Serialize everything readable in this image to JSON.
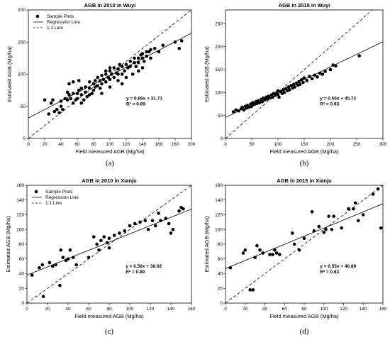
{
  "colors": {
    "points": "#000000",
    "regression": "#000000",
    "identity": "#000000",
    "background": "#ffffff"
  },
  "chart_data": [
    {
      "type": "scatter",
      "caption": "(a)",
      "title": "AGB in 2010 in Wuyi",
      "xlabel": "Field measured AGB (Mg/ha)",
      "ylabel": "Estimated AGB (Mg/ha)",
      "xlim": [
        0,
        200
      ],
      "ylim": [
        0,
        200
      ],
      "xticks": [
        0,
        20,
        40,
        60,
        80,
        100,
        120,
        140,
        160,
        180,
        200
      ],
      "yticks": [
        0,
        50,
        100,
        150,
        200
      ],
      "equation": "y = 0.66x + 31.71",
      "r2": "R² = 0.89",
      "regression": {
        "slope": 0.66,
        "intercept": 31.71
      },
      "legend": {
        "position": "top-left",
        "entries": [
          "Sample Plots",
          "Regression Line",
          "1:1 Line"
        ]
      },
      "points": [
        [
          20,
          60
        ],
        [
          25,
          38
        ],
        [
          28,
          55
        ],
        [
          30,
          60
        ],
        [
          32,
          42
        ],
        [
          35,
          45
        ],
        [
          38,
          40
        ],
        [
          40,
          50
        ],
        [
          40,
          58
        ],
        [
          42,
          45
        ],
        [
          45,
          62
        ],
        [
          48,
          60
        ],
        [
          48,
          72
        ],
        [
          50,
          68
        ],
        [
          50,
          85
        ],
        [
          52,
          62
        ],
        [
          55,
          55
        ],
        [
          55,
          70
        ],
        [
          55,
          88
        ],
        [
          58,
          60
        ],
        [
          60,
          62
        ],
        [
          60,
          70
        ],
        [
          62,
          75
        ],
        [
          62,
          90
        ],
        [
          65,
          55
        ],
        [
          65,
          68
        ],
        [
          65,
          78
        ],
        [
          68,
          60
        ],
        [
          70,
          72
        ],
        [
          70,
          80
        ],
        [
          72,
          65
        ],
        [
          75,
          68
        ],
        [
          75,
          78
        ],
        [
          75,
          88
        ],
        [
          78,
          70
        ],
        [
          80,
          75
        ],
        [
          80,
          85
        ],
        [
          82,
          80
        ],
        [
          82,
          90
        ],
        [
          85,
          82
        ],
        [
          85,
          95
        ],
        [
          88,
          78
        ],
        [
          88,
          90
        ],
        [
          90,
          70
        ],
        [
          90,
          85
        ],
        [
          90,
          98
        ],
        [
          92,
          92
        ],
        [
          95,
          88
        ],
        [
          95,
          100
        ],
        [
          95,
          105
        ],
        [
          98,
          95
        ],
        [
          100,
          80
        ],
        [
          100,
          92
        ],
        [
          100,
          105
        ],
        [
          100,
          110
        ],
        [
          102,
          100
        ],
        [
          105,
          95
        ],
        [
          105,
          110
        ],
        [
          108,
          102
        ],
        [
          110,
          90
        ],
        [
          110,
          100
        ],
        [
          110,
          108
        ],
        [
          112,
          115
        ],
        [
          115,
          85
        ],
        [
          115,
          100
        ],
        [
          115,
          112
        ],
        [
          118,
          105
        ],
        [
          120,
          95
        ],
        [
          120,
          115
        ],
        [
          122,
          110
        ],
        [
          125,
          112
        ],
        [
          125,
          120
        ],
        [
          128,
          100
        ],
        [
          130,
          118
        ],
        [
          130,
          125
        ],
        [
          132,
          112
        ],
        [
          135,
          105
        ],
        [
          135,
          118
        ],
        [
          135,
          125
        ],
        [
          138,
          130
        ],
        [
          140,
          110
        ],
        [
          140,
          125
        ],
        [
          140,
          132
        ],
        [
          142,
          120
        ],
        [
          145,
          128
        ],
        [
          145,
          135
        ],
        [
          148,
          135
        ],
        [
          150,
          125
        ],
        [
          150,
          138
        ],
        [
          155,
          140
        ],
        [
          160,
          135
        ],
        [
          165,
          145
        ],
        [
          180,
          150
        ],
        [
          185,
          140
        ],
        [
          188,
          152
        ]
      ]
    },
    {
      "type": "scatter",
      "caption": "(b)",
      "title": "AGB in 2015 in Wuyi",
      "xlabel": "Field measured AGB (Mg/ha)",
      "ylabel": "Estimated AGB (Mg/ha)",
      "xlim": [
        0,
        300
      ],
      "ylim": [
        0,
        280
      ],
      "xticks": [
        0,
        50,
        100,
        150,
        200,
        250,
        300
      ],
      "yticks": [
        0,
        50,
        100,
        150,
        200,
        250
      ],
      "equation": "y = 0.55x + 45.72",
      "r2": "R² = 0.93",
      "regression": {
        "slope": 0.55,
        "intercept": 45.72
      },
      "points": [
        [
          15,
          58
        ],
        [
          20,
          62
        ],
        [
          25,
          60
        ],
        [
          30,
          65
        ],
        [
          32,
          68
        ],
        [
          35,
          62
        ],
        [
          38,
          70
        ],
        [
          40,
          66
        ],
        [
          42,
          72
        ],
        [
          45,
          68
        ],
        [
          48,
          75
        ],
        [
          50,
          70
        ],
        [
          52,
          78
        ],
        [
          55,
          74
        ],
        [
          58,
          80
        ],
        [
          60,
          76
        ],
        [
          62,
          82
        ],
        [
          65,
          78
        ],
        [
          68,
          85
        ],
        [
          70,
          80
        ],
        [
          72,
          88
        ],
        [
          75,
          84
        ],
        [
          78,
          90
        ],
        [
          80,
          86
        ],
        [
          82,
          92
        ],
        [
          85,
          88
        ],
        [
          88,
          95
        ],
        [
          90,
          90
        ],
        [
          92,
          98
        ],
        [
          95,
          94
        ],
        [
          98,
          100
        ],
        [
          100,
          96
        ],
        [
          100,
          104
        ],
        [
          102,
          90
        ],
        [
          105,
          102
        ],
        [
          108,
          98
        ],
        [
          110,
          106
        ],
        [
          112,
          100
        ],
        [
          115,
          108
        ],
        [
          118,
          104
        ],
        [
          120,
          112
        ],
        [
          122,
          106
        ],
        [
          125,
          115
        ],
        [
          128,
          110
        ],
        [
          130,
          118
        ],
        [
          132,
          112
        ],
        [
          135,
          120
        ],
        [
          138,
          116
        ],
        [
          140,
          124
        ],
        [
          142,
          118
        ],
        [
          145,
          128
        ],
        [
          148,
          122
        ],
        [
          150,
          132
        ],
        [
          155,
          126
        ],
        [
          160,
          135
        ],
        [
          165,
          130
        ],
        [
          170,
          138
        ],
        [
          175,
          134
        ],
        [
          180,
          142
        ],
        [
          185,
          140
        ],
        [
          190,
          146
        ],
        [
          200,
          150
        ],
        [
          205,
          160
        ],
        [
          210,
          158
        ],
        [
          255,
          180
        ]
      ]
    },
    {
      "type": "scatter",
      "caption": "(c)",
      "title": "AGB in 2010 in Xianju",
      "xlabel": "Field measured AGB (Mg/ha)",
      "ylabel": "Estimated AGB (Mg/ha)",
      "xlim": [
        0,
        160
      ],
      "ylim": [
        0,
        160
      ],
      "xticks": [
        0,
        20,
        40,
        60,
        80,
        100,
        120,
        140,
        160
      ],
      "yticks": [
        0,
        20,
        40,
        60,
        80,
        100,
        120,
        140,
        160
      ],
      "equation": "y = 0.56x + 38.02",
      "r2": "R² = 0.89",
      "regression": {
        "slope": 0.56,
        "intercept": 38.02
      },
      "legend": {
        "position": "top-left",
        "entries": [
          "Sample Plots",
          "Regression Line",
          "1:1 Line"
        ]
      },
      "points": [
        [
          5,
          38
        ],
        [
          12,
          48
        ],
        [
          15,
          52
        ],
        [
          16,
          9
        ],
        [
          22,
          55
        ],
        [
          25,
          50
        ],
        [
          28,
          52
        ],
        [
          32,
          24
        ],
        [
          33,
          72
        ],
        [
          35,
          62
        ],
        [
          38,
          58
        ],
        [
          40,
          60
        ],
        [
          42,
          72
        ],
        [
          45,
          62
        ],
        [
          48,
          52
        ],
        [
          60,
          62
        ],
        [
          65,
          90
        ],
        [
          68,
          80
        ],
        [
          70,
          72
        ],
        [
          72,
          85
        ],
        [
          75,
          90
        ],
        [
          78,
          82
        ],
        [
          80,
          75
        ],
        [
          80,
          88
        ],
        [
          85,
          92
        ],
        [
          90,
          95
        ],
        [
          95,
          98
        ],
        [
          100,
          105
        ],
        [
          105,
          108
        ],
        [
          110,
          110
        ],
        [
          115,
          112
        ],
        [
          118,
          100
        ],
        [
          122,
          112
        ],
        [
          125,
          105
        ],
        [
          128,
          122
        ],
        [
          130,
          112
        ],
        [
          135,
          115
        ],
        [
          138,
          108
        ],
        [
          140,
          95
        ],
        [
          142,
          100
        ],
        [
          148,
          125
        ],
        [
          150,
          130
        ],
        [
          152,
          128
        ]
      ]
    },
    {
      "type": "scatter",
      "caption": "(d)",
      "title": "AGB in 2015 in Xianju",
      "xlabel": "Field measured AGB (Mg/ha)",
      "ylabel": "Estimated AGB (Mg/ha)",
      "xlim": [
        0,
        160
      ],
      "ylim": [
        0,
        160
      ],
      "xticks": [
        0,
        20,
        40,
        60,
        80,
        100,
        120,
        140,
        160
      ],
      "yticks": [
        0,
        20,
        40,
        60,
        80,
        100,
        120,
        140,
        160
      ],
      "equation": "y = 0.55x + 46.89",
      "r2": "R² = 0.83",
      "regression": {
        "slope": 0.55,
        "intercept": 46.89
      },
      "points": [
        [
          5,
          48
        ],
        [
          18,
          68
        ],
        [
          20,
          72
        ],
        [
          25,
          18
        ],
        [
          28,
          18
        ],
        [
          30,
          62
        ],
        [
          32,
          78
        ],
        [
          35,
          72
        ],
        [
          38,
          68
        ],
        [
          45,
          66
        ],
        [
          48,
          66
        ],
        [
          50,
          72
        ],
        [
          52,
          68
        ],
        [
          55,
          66
        ],
        [
          68,
          95
        ],
        [
          70,
          80
        ],
        [
          75,
          72
        ],
        [
          80,
          88
        ],
        [
          88,
          124
        ],
        [
          90,
          98
        ],
        [
          95,
          104
        ],
        [
          100,
          96
        ],
        [
          102,
          100
        ],
        [
          105,
          118
        ],
        [
          108,
          100
        ],
        [
          110,
          118
        ],
        [
          118,
          102
        ],
        [
          125,
          128
        ],
        [
          130,
          128
        ],
        [
          132,
          136
        ],
        [
          135,
          112
        ],
        [
          140,
          120
        ],
        [
          150,
          148
        ],
        [
          155,
          155
        ],
        [
          158,
          102
        ]
      ]
    }
  ]
}
